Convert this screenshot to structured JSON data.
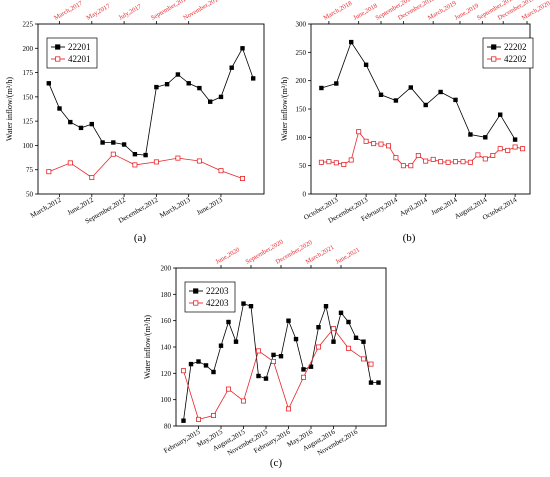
{
  "chart_data": [
    {
      "type": "line",
      "panel_label": "(a)",
      "ylabel": "Water inflow/(m³/h)",
      "ylim": [
        50,
        225
      ],
      "yticks": [
        50,
        75,
        100,
        125,
        150,
        175,
        200,
        225
      ],
      "x_count": 16,
      "bottom_ticks": [
        {
          "label": "March,2012",
          "x": 2
        },
        {
          "label": "June,2012",
          "x": 5
        },
        {
          "label": "September,2012",
          "x": 8
        },
        {
          "label": "December,2012",
          "x": 11
        },
        {
          "label": "March,2013",
          "x": 14
        },
        {
          "label": "June,2013",
          "x": 17
        }
      ],
      "top_ticks": [
        {
          "label": "March,2017",
          "x": 2
        },
        {
          "label": "May,2017",
          "x": 5
        },
        {
          "label": "July,2017",
          "x": 8
        },
        {
          "label": "September,2017",
          "x": 11
        },
        {
          "label": "November,2017",
          "x": 14
        }
      ],
      "legend_position": "top-left",
      "series": [
        {
          "name": "22201",
          "marker": "square-filled",
          "color": "#000000",
          "x": [
            1,
            2,
            3,
            4,
            5,
            6,
            7,
            8,
            9,
            10,
            11,
            12,
            13,
            14,
            15,
            16,
            17,
            18,
            19,
            20
          ],
          "values": [
            164,
            138,
            124,
            118,
            122,
            103,
            103,
            101,
            91,
            90,
            160,
            163,
            173,
            164,
            159,
            145,
            150,
            180,
            200,
            169
          ]
        },
        {
          "name": "42201",
          "marker": "square-open",
          "color": "#e8262a",
          "x": [
            1,
            3,
            5,
            7,
            9,
            11,
            13,
            15,
            17,
            19
          ],
          "values": [
            73,
            82,
            67,
            91,
            80,
            83,
            87,
            84,
            74,
            66
          ]
        }
      ]
    },
    {
      "type": "line",
      "panel_label": "(b)",
      "ylabel": "Water inflow/(m³/h)",
      "ylim": [
        0,
        300
      ],
      "yticks": [
        0,
        50,
        100,
        150,
        200,
        250,
        300
      ],
      "x_count": 13,
      "bottom_ticks": [
        {
          "label": "October,2013",
          "x": 2
        },
        {
          "label": "December,2013",
          "x": 4
        },
        {
          "label": "February,2014",
          "x": 6
        },
        {
          "label": "April,2014",
          "x": 8
        },
        {
          "label": "June,2014",
          "x": 10
        },
        {
          "label": "August,2014",
          "x": 12
        },
        {
          "label": "October,2014",
          "x": 14
        }
      ],
      "top_ticks": [
        {
          "label": "March,2018",
          "x": 1.5
        },
        {
          "label": "June,2018",
          "x": 3.5
        },
        {
          "label": "September,2018",
          "x": 5
        },
        {
          "label": "December,2018",
          "x": 6.5
        },
        {
          "label": "March,2019",
          "x": 8.5
        },
        {
          "label": "June,2019",
          "x": 10.3
        },
        {
          "label": "September,2019",
          "x": 11.8
        },
        {
          "label": "December,2019",
          "x": 13.2
        },
        {
          "label": "March,2020",
          "x": 14.8
        }
      ],
      "legend_position": "top-right",
      "series": [
        {
          "name": "22202",
          "marker": "square-filled",
          "color": "#000000",
          "x": [
            1,
            2,
            3,
            4,
            5,
            6,
            7,
            8,
            9,
            10,
            11,
            12,
            13,
            14
          ],
          "values": [
            187,
            195,
            268,
            228,
            175,
            165,
            188,
            157,
            180,
            166,
            105,
            100,
            140,
            96
          ]
        },
        {
          "name": "42202",
          "marker": "square-open",
          "color": "#e8262a",
          "x": [
            1,
            1.5,
            2,
            2.5,
            3,
            3.5,
            4,
            4.5,
            5,
            5.5,
            6,
            6.5,
            7,
            7.5,
            8,
            8.5,
            9,
            9.5,
            10,
            10.5,
            11,
            11.5,
            12,
            12.5,
            13,
            13.5,
            14,
            14.5
          ],
          "values": [
            56,
            57,
            55,
            52,
            60,
            110,
            93,
            89,
            88,
            85,
            64,
            50,
            50,
            68,
            58,
            61,
            57,
            56,
            57,
            57,
            56,
            69,
            62,
            68,
            80,
            77,
            83,
            80
          ]
        }
      ]
    },
    {
      "type": "line",
      "panel_label": "(c)",
      "ylabel": "Water inflow/(m³/h)",
      "ylim": [
        80,
        200
      ],
      "yticks": [
        80,
        100,
        120,
        140,
        160,
        180,
        200
      ],
      "x_count": 26,
      "bottom_ticks": [
        {
          "label": "February,2015",
          "x": 3
        },
        {
          "label": "May,2015",
          "x": 6
        },
        {
          "label": "August,2015",
          "x": 9
        },
        {
          "label": "November,2015",
          "x": 12
        },
        {
          "label": "February,2016",
          "x": 15
        },
        {
          "label": "May,2016",
          "x": 18
        },
        {
          "label": "August,2016",
          "x": 21
        },
        {
          "label": "November,2016",
          "x": 24
        }
      ],
      "top_ticks": [
        {
          "label": "June,2020",
          "x": 6
        },
        {
          "label": "September,2020",
          "x": 10
        },
        {
          "label": "December,2020",
          "x": 14
        },
        {
          "label": "March,2021",
          "x": 18
        },
        {
          "label": "June,2021",
          "x": 22
        }
      ],
      "legend_position": "top-left",
      "series": [
        {
          "name": "22203",
          "marker": "square-filled",
          "color": "#000000",
          "x": [
            1,
            2,
            3,
            4,
            5,
            6,
            7,
            8,
            9,
            10,
            11,
            12,
            13,
            14,
            15,
            16,
            17,
            18,
            19,
            20,
            21,
            22,
            23,
            24,
            25,
            26,
            27
          ],
          "values": [
            84,
            127,
            129,
            126,
            121,
            141,
            159,
            144,
            173,
            171,
            118,
            116,
            134,
            133,
            160,
            146,
            123,
            125,
            155,
            171,
            144,
            166,
            159,
            147,
            144,
            113,
            113
          ]
        },
        {
          "name": "42203",
          "marker": "square-open",
          "color": "#e8262a",
          "x": [
            1,
            3,
            5,
            7,
            9,
            11,
            13,
            15,
            17,
            19,
            21,
            23,
            25,
            26
          ],
          "values": [
            122,
            85,
            88,
            108,
            99,
            137,
            129,
            93,
            117,
            140,
            154,
            139,
            131,
            127
          ]
        }
      ]
    }
  ]
}
